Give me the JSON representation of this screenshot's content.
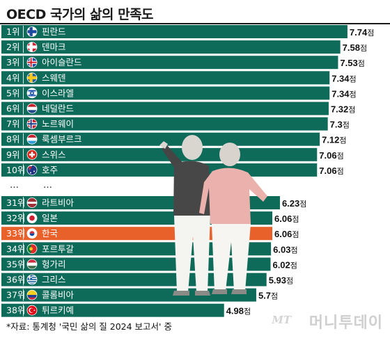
{
  "title": "OECD 국가의 삶의 만족도",
  "source": "*자료: 통계청 '국민 삶의 질 2024 보고서' 중",
  "logo": "머니투데이",
  "logo_mark": "MT",
  "ellipsis": [
    "…",
    "…"
  ],
  "colors": {
    "bar": "#0f6b59",
    "highlight": "#e8602a",
    "divider": "#ffffff"
  },
  "chart_data": {
    "type": "bar",
    "orientation": "horizontal",
    "title": "OECD 국가의 삶의 만족도",
    "unit": "점",
    "highlight_rank": "33위",
    "groups": [
      [
        {
          "rank": "1위",
          "country": "핀란드",
          "value": 7.74,
          "flag": "finland"
        },
        {
          "rank": "2위",
          "country": "덴마크",
          "value": 7.58,
          "flag": "denmark"
        },
        {
          "rank": "3위",
          "country": "아이슬란드",
          "value": 7.53,
          "flag": "iceland"
        },
        {
          "rank": "4위",
          "country": "스웨덴",
          "value": 7.34,
          "flag": "sweden"
        },
        {
          "rank": "5위",
          "country": "이스라엘",
          "value": 7.34,
          "flag": "israel"
        },
        {
          "rank": "6위",
          "country": "네덜란드",
          "value": 7.32,
          "flag": "netherlands"
        },
        {
          "rank": "7위",
          "country": "노르웨이",
          "value": 7.3,
          "flag": "norway"
        },
        {
          "rank": "8위",
          "country": "룩셈부르크",
          "value": 7.12,
          "flag": "luxembourg"
        },
        {
          "rank": "9위",
          "country": "스위스",
          "value": 7.06,
          "flag": "switzerland"
        },
        {
          "rank": "10위",
          "country": "호주",
          "value": 7.06,
          "flag": "australia"
        }
      ],
      [
        {
          "rank": "31위",
          "country": "라트비아",
          "value": 6.23,
          "flag": "latvia"
        },
        {
          "rank": "32위",
          "country": "일본",
          "value": 6.06,
          "flag": "japan"
        },
        {
          "rank": "33위",
          "country": "한국",
          "value": 6.06,
          "flag": "korea"
        },
        {
          "rank": "34위",
          "country": "포르투갈",
          "value": 6.03,
          "flag": "portugal"
        },
        {
          "rank": "35위",
          "country": "헝가리",
          "value": 6.02,
          "flag": "hungary"
        },
        {
          "rank": "36위",
          "country": "그리스",
          "value": 5.93,
          "flag": "greece"
        },
        {
          "rank": "37위",
          "country": "콜롬비아",
          "value": 5.7,
          "flag": "colombia"
        },
        {
          "rank": "38위",
          "country": "튀르키예",
          "value": 4.98,
          "flag": "turkey"
        }
      ]
    ]
  }
}
